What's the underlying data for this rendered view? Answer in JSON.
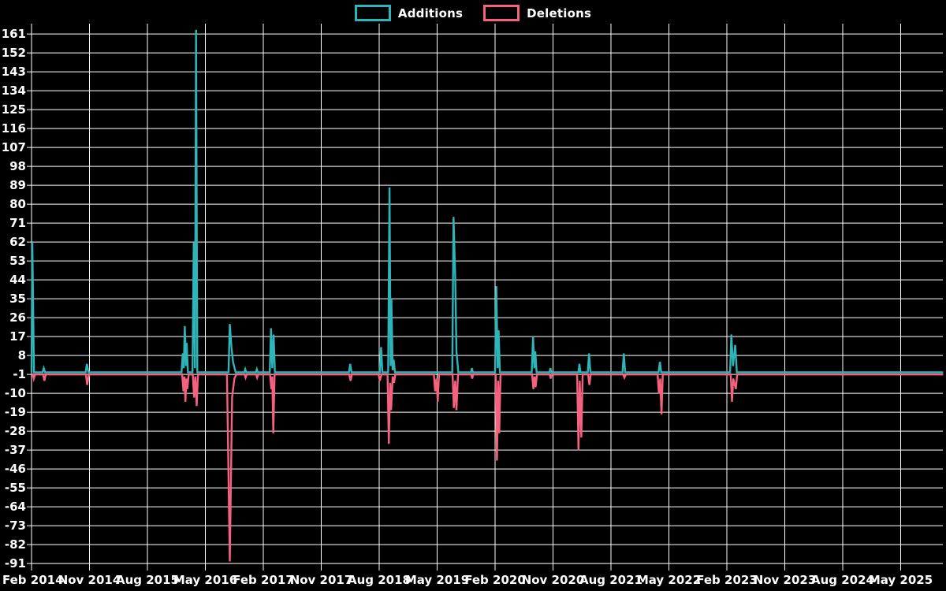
{
  "legend": {
    "items": [
      {
        "label": "Additions",
        "color": "#2db5b9"
      },
      {
        "label": "Deletions",
        "color": "#f5617e"
      }
    ]
  },
  "chart_data": {
    "type": "line",
    "title": "",
    "background": "#000000",
    "grid": true,
    "grid_color": "#ffffff",
    "text_color": "#ffffff",
    "legend_position": "top-center",
    "x_axis": {
      "unit": "months since Feb 2014",
      "tick_interval_months": 9,
      "range": [
        0,
        141.6
      ],
      "tick_labels": [
        "Feb 2014",
        "Nov 2014",
        "Aug 2015",
        "May 2016",
        "Feb 2017",
        "Nov 2017",
        "Aug 2018",
        "May 2019",
        "Feb 2020",
        "Nov 2020",
        "Aug 2021",
        "May 2022",
        "Feb 2023",
        "Nov 2023",
        "Aug 2024",
        "May 2025"
      ]
    },
    "y_axis": {
      "min": -91,
      "max": 161,
      "step": 9,
      "ticks": [
        161,
        152,
        143,
        134,
        125,
        116,
        107,
        98,
        89,
        80,
        71,
        62,
        53,
        44,
        35,
        26,
        17,
        8,
        -1,
        -10,
        -19,
        -28,
        -37,
        -46,
        -55,
        -64,
        -73,
        -82,
        -91
      ]
    },
    "series": [
      {
        "name": "Additions",
        "color": "#2db5b9",
        "baseline": 0,
        "points": [
          [
            0,
            0
          ],
          [
            0.12,
            62
          ],
          [
            0.38,
            0
          ],
          [
            1.7,
            0
          ],
          [
            1.9,
            2
          ],
          [
            2.1,
            0
          ],
          [
            8.4,
            0
          ],
          [
            8.6,
            4
          ],
          [
            8.85,
            0
          ],
          [
            23.3,
            0
          ],
          [
            23.5,
            9
          ],
          [
            23.65,
            2
          ],
          [
            23.8,
            22
          ],
          [
            24.0,
            3
          ],
          [
            24.1,
            14
          ],
          [
            24.3,
            0
          ],
          [
            25.0,
            0
          ],
          [
            25.2,
            62
          ],
          [
            25.38,
            2
          ],
          [
            25.55,
            163
          ],
          [
            25.75,
            0
          ],
          [
            30.6,
            0
          ],
          [
            30.8,
            23
          ],
          [
            31.05,
            12
          ],
          [
            31.3,
            5
          ],
          [
            31.7,
            0
          ],
          [
            33.05,
            0
          ],
          [
            33.2,
            1.5
          ],
          [
            33.35,
            0
          ],
          [
            34.85,
            0
          ],
          [
            35.0,
            1.5
          ],
          [
            35.15,
            0
          ],
          [
            37.0,
            0
          ],
          [
            37.2,
            21
          ],
          [
            37.4,
            2
          ],
          [
            37.6,
            18
          ],
          [
            37.8,
            0
          ],
          [
            49.3,
            0
          ],
          [
            49.5,
            4
          ],
          [
            49.7,
            0
          ],
          [
            54.1,
            0
          ],
          [
            54.3,
            12
          ],
          [
            54.5,
            0
          ],
          [
            55.4,
            0
          ],
          [
            55.6,
            88
          ],
          [
            55.78,
            3
          ],
          [
            55.9,
            35
          ],
          [
            56.1,
            1
          ],
          [
            56.25,
            6
          ],
          [
            56.45,
            0
          ],
          [
            65.35,
            0
          ],
          [
            65.55,
            74
          ],
          [
            65.8,
            46
          ],
          [
            66.0,
            10
          ],
          [
            66.3,
            0
          ],
          [
            68.25,
            0
          ],
          [
            68.4,
            2
          ],
          [
            68.55,
            0
          ],
          [
            72.0,
            0
          ],
          [
            72.2,
            41
          ],
          [
            72.4,
            2
          ],
          [
            72.55,
            20
          ],
          [
            72.75,
            0
          ],
          [
            77.7,
            0
          ],
          [
            77.9,
            17
          ],
          [
            78.1,
            2
          ],
          [
            78.25,
            10
          ],
          [
            78.45,
            0
          ],
          [
            80.45,
            0
          ],
          [
            80.6,
            2
          ],
          [
            80.75,
            0
          ],
          [
            84.95,
            0
          ],
          [
            85.1,
            4
          ],
          [
            85.25,
            0
          ],
          [
            86.4,
            0
          ],
          [
            86.6,
            9
          ],
          [
            86.8,
            0
          ],
          [
            91.8,
            0
          ],
          [
            92.0,
            9
          ],
          [
            92.2,
            0
          ],
          [
            97.4,
            0
          ],
          [
            97.6,
            5
          ],
          [
            97.8,
            0
          ],
          [
            108.5,
            0
          ],
          [
            108.7,
            18
          ],
          [
            108.95,
            3
          ],
          [
            109.3,
            13
          ],
          [
            109.55,
            0
          ],
          [
            141.6,
            0
          ]
        ]
      },
      {
        "name": "Deletions",
        "color": "#f5617e",
        "baseline": -1,
        "points": [
          [
            0,
            -1
          ],
          [
            0.2,
            -1
          ],
          [
            0.35,
            -3
          ],
          [
            0.55,
            -1
          ],
          [
            1.8,
            -1
          ],
          [
            2.0,
            -4
          ],
          [
            2.2,
            -1
          ],
          [
            8.45,
            -1
          ],
          [
            8.65,
            -6
          ],
          [
            8.9,
            -1
          ],
          [
            23.4,
            -1
          ],
          [
            23.6,
            -9
          ],
          [
            23.75,
            -2
          ],
          [
            23.9,
            -14
          ],
          [
            24.05,
            -3
          ],
          [
            24.2,
            -8
          ],
          [
            24.4,
            -1
          ],
          [
            25.05,
            -1
          ],
          [
            25.25,
            -12
          ],
          [
            25.45,
            -2
          ],
          [
            25.65,
            -16
          ],
          [
            25.85,
            -1
          ],
          [
            30.35,
            -1
          ],
          [
            30.55,
            -40
          ],
          [
            30.8,
            -90
          ],
          [
            31.15,
            -12
          ],
          [
            31.5,
            -3
          ],
          [
            31.8,
            -1
          ],
          [
            33.1,
            -1
          ],
          [
            33.25,
            -2.5
          ],
          [
            33.4,
            -1
          ],
          [
            34.9,
            -1
          ],
          [
            35.05,
            -2.5
          ],
          [
            35.2,
            -1
          ],
          [
            37.05,
            -1
          ],
          [
            37.25,
            -8
          ],
          [
            37.4,
            -2
          ],
          [
            37.55,
            -29
          ],
          [
            37.75,
            -1
          ],
          [
            49.35,
            -1
          ],
          [
            49.55,
            -4
          ],
          [
            49.75,
            -1
          ],
          [
            53.9,
            -1
          ],
          [
            54.1,
            -4
          ],
          [
            54.35,
            -1
          ],
          [
            55.3,
            -1
          ],
          [
            55.5,
            -34
          ],
          [
            55.7,
            -5
          ],
          [
            55.85,
            -18
          ],
          [
            56.1,
            -2
          ],
          [
            56.3,
            -5
          ],
          [
            56.5,
            -1
          ],
          [
            62.5,
            -1
          ],
          [
            62.7,
            -9
          ],
          [
            62.9,
            -3
          ],
          [
            63.1,
            -14
          ],
          [
            63.3,
            -1
          ],
          [
            65.4,
            -1
          ],
          [
            65.6,
            -17
          ],
          [
            65.8,
            -4
          ],
          [
            66.0,
            -18
          ],
          [
            66.25,
            -1
          ],
          [
            68.3,
            -1
          ],
          [
            68.45,
            -3
          ],
          [
            68.6,
            -1
          ],
          [
            72.1,
            -1
          ],
          [
            72.3,
            -42
          ],
          [
            72.48,
            -4
          ],
          [
            72.65,
            -29
          ],
          [
            72.85,
            -1
          ],
          [
            77.75,
            -1
          ],
          [
            77.95,
            -8
          ],
          [
            78.12,
            -2
          ],
          [
            78.3,
            -7
          ],
          [
            78.5,
            -1
          ],
          [
            80.5,
            -1
          ],
          [
            80.65,
            -3
          ],
          [
            80.8,
            -1
          ],
          [
            84.75,
            -1
          ],
          [
            84.95,
            -37
          ],
          [
            85.15,
            -4
          ],
          [
            85.4,
            -31
          ],
          [
            85.6,
            -1
          ],
          [
            86.45,
            -1
          ],
          [
            86.65,
            -6
          ],
          [
            86.85,
            -1
          ],
          [
            91.9,
            -1
          ],
          [
            92.1,
            -2.5
          ],
          [
            92.3,
            -1
          ],
          [
            97.25,
            -1
          ],
          [
            97.45,
            -10
          ],
          [
            97.65,
            -3
          ],
          [
            97.85,
            -20
          ],
          [
            98.05,
            -1
          ],
          [
            108.6,
            -1
          ],
          [
            108.8,
            -14
          ],
          [
            109.0,
            -3
          ],
          [
            109.4,
            -8
          ],
          [
            109.6,
            -1
          ],
          [
            141.6,
            -1
          ]
        ]
      }
    ]
  }
}
